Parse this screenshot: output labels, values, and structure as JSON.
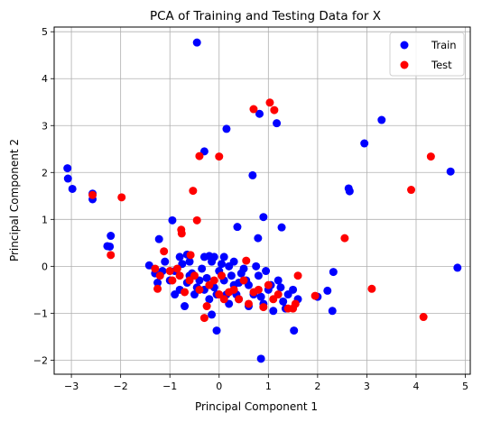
{
  "chart_data": {
    "type": "scatter",
    "title": "PCA of Training and Testing Data for X",
    "xlabel": "Principal Component 1",
    "ylabel": "Principal Component 2",
    "xlim": [
      -3.35,
      5.1
    ],
    "ylim": [
      -2.3,
      5.1
    ],
    "xticks": [
      -3,
      -2,
      -1,
      0,
      1,
      2,
      3,
      4,
      5
    ],
    "yticks": [
      -2,
      -1,
      0,
      1,
      2,
      3,
      4,
      5
    ],
    "grid": true,
    "legend_position": "top-right",
    "series": [
      {
        "name": "Train",
        "color": "#0000ff",
        "points": [
          [
            -0.45,
            4.77
          ],
          [
            3.3,
            3.12
          ],
          [
            1.17,
            3.05
          ],
          [
            0.82,
            3.25
          ],
          [
            2.95,
            2.62
          ],
          [
            -0.3,
            2.45
          ],
          [
            0.15,
            2.93
          ],
          [
            4.7,
            2.02
          ],
          [
            -3.08,
            2.09
          ],
          [
            -3.07,
            1.87
          ],
          [
            -2.98,
            1.65
          ],
          [
            0.68,
            1.94
          ],
          [
            2.63,
            1.66
          ],
          [
            2.65,
            1.6
          ],
          [
            -2.57,
            1.55
          ],
          [
            -2.57,
            1.43
          ],
          [
            0.9,
            1.05
          ],
          [
            1.27,
            0.83
          ],
          [
            -0.95,
            0.98
          ],
          [
            0.37,
            0.84
          ],
          [
            -2.2,
            0.65
          ],
          [
            -2.22,
            0.42
          ],
          [
            -2.27,
            0.43
          ],
          [
            -1.22,
            0.58
          ],
          [
            0.79,
            0.6
          ],
          [
            -0.65,
            0.25
          ],
          [
            -0.2,
            0.22
          ],
          [
            -0.3,
            0.2
          ],
          [
            -1.42,
            0.02
          ],
          [
            -1.3,
            -0.15
          ],
          [
            -1.25,
            -0.35
          ],
          [
            2.32,
            -0.12
          ],
          [
            4.84,
            -0.03
          ],
          [
            0.1,
            0.2
          ],
          [
            0.3,
            0.1
          ],
          [
            -0.1,
            0.2
          ],
          [
            -0.6,
            -0.2
          ],
          [
            -0.3,
            -0.5
          ],
          [
            0.1,
            -0.3
          ],
          [
            -0.5,
            -0.6
          ],
          [
            0.4,
            -0.7
          ],
          [
            0.6,
            -0.4
          ],
          [
            0.8,
            -0.2
          ],
          [
            1.0,
            -0.5
          ],
          [
            1.2,
            -0.3
          ],
          [
            1.4,
            -0.6
          ],
          [
            -0.2,
            -0.7
          ],
          [
            0.2,
            -0.8
          ],
          [
            -0.8,
            -0.5
          ],
          [
            -0.4,
            -0.3
          ],
          [
            0.9,
            -0.8
          ],
          [
            1.1,
            -0.95
          ],
          [
            1.35,
            -0.9
          ],
          [
            1.52,
            -1.37
          ],
          [
            2.2,
            -0.52
          ],
          [
            2.3,
            -0.95
          ],
          [
            -0.15,
            -1.03
          ],
          [
            -0.05,
            -1.37
          ],
          [
            0.85,
            -1.97
          ],
          [
            -0.7,
            -0.85
          ],
          [
            -1.0,
            -0.3
          ],
          [
            -0.9,
            -0.1
          ],
          [
            0.0,
            -0.1
          ],
          [
            0.5,
            -0.05
          ],
          [
            0.7,
            -0.6
          ],
          [
            0.3,
            -0.4
          ],
          [
            -0.1,
            -0.45
          ],
          [
            -0.55,
            -0.15
          ],
          [
            0.15,
            -0.6
          ],
          [
            1.5,
            -0.5
          ],
          [
            1.3,
            -0.75
          ],
          [
            1.6,
            -0.7
          ],
          [
            2.0,
            -0.65
          ],
          [
            -1.1,
            0.1
          ],
          [
            -0.8,
            0.2
          ],
          [
            0.25,
            -0.2
          ],
          [
            0.55,
            -0.3
          ],
          [
            0.95,
            -0.1
          ],
          [
            -0.35,
            -0.05
          ],
          [
            0.05,
            0.05
          ],
          [
            -0.65,
            -0.35
          ],
          [
            -0.25,
            -0.25
          ],
          [
            0.35,
            -0.6
          ],
          [
            -0.45,
            -0.45
          ],
          [
            0.75,
            0.0
          ],
          [
            1.05,
            -0.4
          ],
          [
            0.85,
            -0.65
          ],
          [
            -0.05,
            -0.6
          ],
          [
            0.45,
            -0.15
          ],
          [
            -0.75,
            0.05
          ],
          [
            0.2,
            0.0
          ],
          [
            0.6,
            -0.85
          ],
          [
            1.25,
            -0.45
          ],
          [
            -0.9,
            -0.6
          ],
          [
            -0.15,
            0.1
          ],
          [
            -1.15,
            -0.1
          ],
          [
            0.4,
            -0.35
          ],
          [
            -0.6,
            0.1
          ]
        ]
      },
      {
        "name": "Test",
        "color": "#ff0000",
        "points": [
          [
            1.03,
            3.49
          ],
          [
            0.7,
            3.35
          ],
          [
            1.12,
            3.33
          ],
          [
            -0.4,
            2.35
          ],
          [
            0.0,
            2.34
          ],
          [
            4.3,
            2.34
          ],
          [
            -1.98,
            1.47
          ],
          [
            -2.57,
            1.52
          ],
          [
            3.9,
            1.63
          ],
          [
            -0.53,
            1.61
          ],
          [
            -0.45,
            0.98
          ],
          [
            -0.77,
            0.78
          ],
          [
            -0.76,
            0.7
          ],
          [
            2.55,
            0.6
          ],
          [
            -2.2,
            0.24
          ],
          [
            -1.12,
            0.32
          ],
          [
            -0.58,
            0.24
          ],
          [
            0.55,
            0.12
          ],
          [
            -1.3,
            -0.05
          ],
          [
            -1.2,
            -0.2
          ],
          [
            -1.0,
            -0.1
          ],
          [
            -0.8,
            -0.2
          ],
          [
            -0.6,
            -0.3
          ],
          [
            -0.4,
            -0.5
          ],
          [
            -0.2,
            -0.4
          ],
          [
            0.0,
            -0.6
          ],
          [
            0.2,
            -0.55
          ],
          [
            0.4,
            -0.7
          ],
          [
            0.6,
            -0.8
          ],
          [
            0.8,
            -0.5
          ],
          [
            1.0,
            -0.4
          ],
          [
            1.2,
            -0.6
          ],
          [
            1.4,
            -0.9
          ],
          [
            1.6,
            -0.2
          ],
          [
            1.95,
            -0.63
          ],
          [
            3.1,
            -0.48
          ],
          [
            4.15,
            -1.08
          ],
          [
            -0.3,
            -1.1
          ],
          [
            0.9,
            -0.87
          ],
          [
            1.5,
            -0.9
          ],
          [
            -1.25,
            -0.48
          ],
          [
            -0.95,
            -0.3
          ],
          [
            -0.7,
            -0.55
          ],
          [
            -0.5,
            -0.2
          ],
          [
            -0.1,
            -0.3
          ],
          [
            0.1,
            -0.7
          ],
          [
            0.3,
            -0.5
          ],
          [
            0.5,
            -0.3
          ],
          [
            0.7,
            -0.55
          ],
          [
            1.1,
            -0.7
          ],
          [
            -0.25,
            -0.85
          ],
          [
            0.05,
            -0.2
          ],
          [
            -0.85,
            -0.05
          ],
          [
            1.55,
            -0.8
          ]
        ]
      }
    ]
  }
}
